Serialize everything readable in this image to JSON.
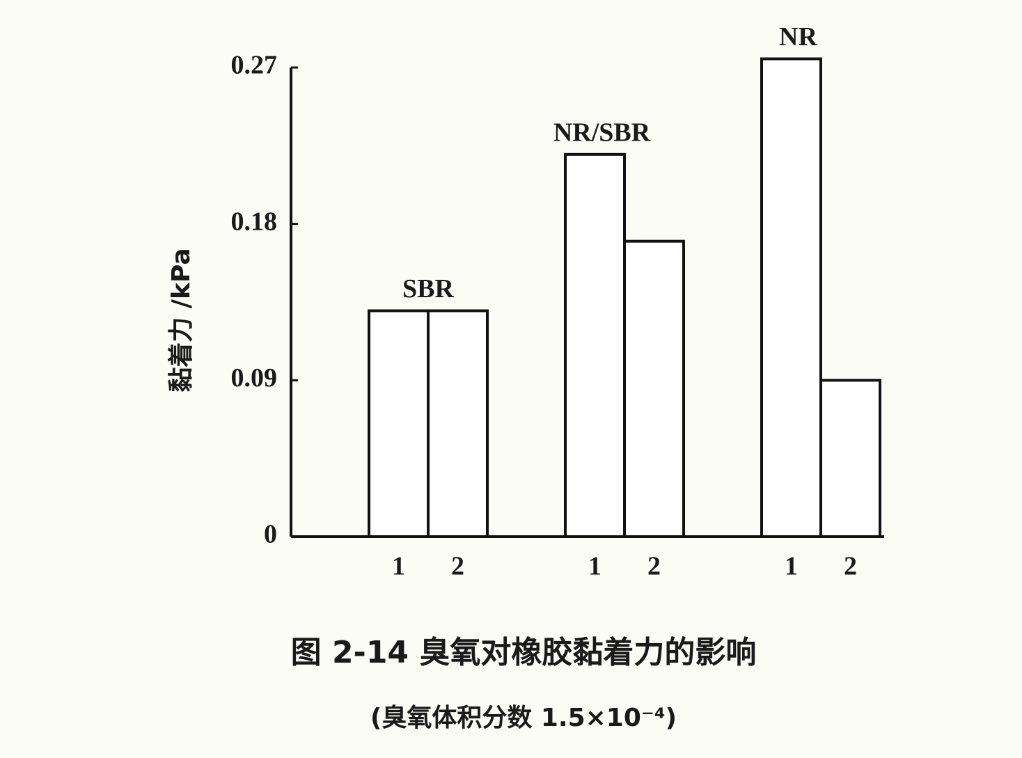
{
  "chart_data": {
    "type": "bar",
    "y_label": "黏着力 /kPa",
    "title": "图 2-14   臭氧对橡胶黏着力的影响",
    "subtitle": "(臭氧体积分数 1.5×10⁻⁴)",
    "groups": [
      {
        "name": "SBR",
        "categories": [
          "1",
          "2"
        ],
        "values": [
          0.13,
          0.13
        ]
      },
      {
        "name": "NR/SBR",
        "categories": [
          "1",
          "2"
        ],
        "values": [
          0.22,
          0.17
        ]
      },
      {
        "name": "NR",
        "categories": [
          "1",
          "2"
        ],
        "values": [
          0.275,
          0.09
        ]
      }
    ],
    "color": "#ffffff",
    "ylim": [
      0,
      0.27
    ],
    "yticks": [
      0,
      0.09,
      0.18,
      0.27
    ]
  }
}
